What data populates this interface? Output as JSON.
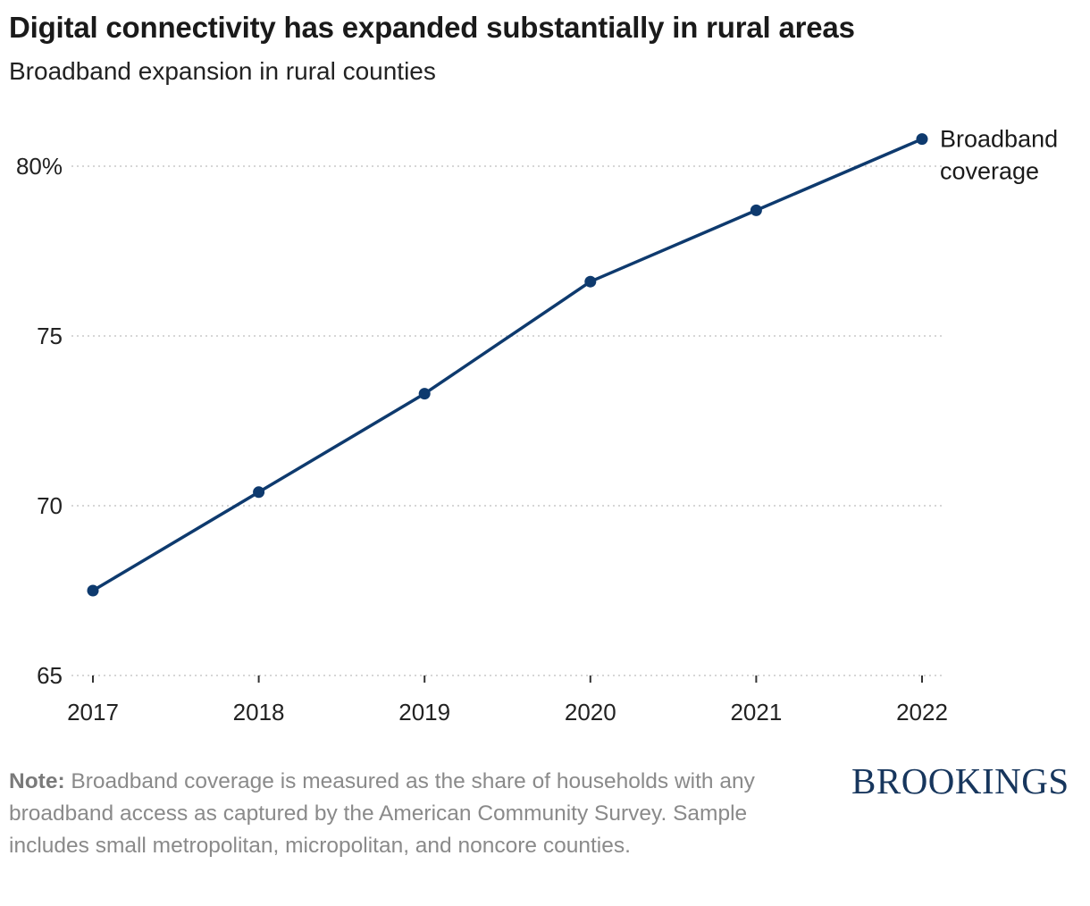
{
  "header": {
    "title": "Digital connectivity has expanded substantially in rural areas",
    "subtitle": "Broadband expansion in rural counties"
  },
  "chart_data": {
    "type": "line",
    "x": [
      "2017",
      "2018",
      "2019",
      "2020",
      "2021",
      "2022"
    ],
    "series": [
      {
        "name": "Broadband coverage",
        "values": [
          67.5,
          70.4,
          73.3,
          76.6,
          78.7,
          80.8
        ],
        "color": "#0e3a6e"
      }
    ],
    "ylim": [
      65,
      82
    ],
    "yticks": [
      {
        "value": 65,
        "label": "65"
      },
      {
        "value": 70,
        "label": "70"
      },
      {
        "value": 75,
        "label": "75"
      },
      {
        "value": 80,
        "label": "80%"
      }
    ],
    "grid": true,
    "legend": "end-of-line label",
    "series_label_lines": [
      "Broadband",
      "coverage"
    ]
  },
  "footer": {
    "note_label": "Note:",
    "note_text": " Broadband coverage is measured as the share of households with any broadband access as captured by the American Community Survey. Sample includes small metropolitan, micropolitan, and noncore counties.",
    "logo": "BROOKINGS"
  }
}
